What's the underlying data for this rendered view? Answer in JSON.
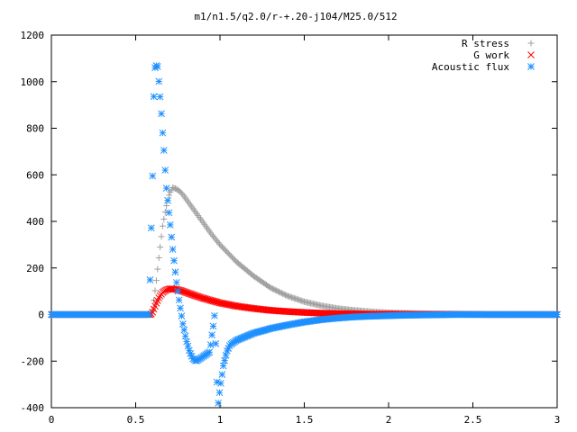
{
  "chart_data": {
    "type": "scatter",
    "title": "m1/n1.5/q2.0/r-+.20-j104/M25.0/512",
    "xlim": [
      0,
      3
    ],
    "ylim": [
      -400,
      1200
    ],
    "x_ticks": [
      0,
      0.5,
      1,
      1.5,
      2,
      2.5,
      3
    ],
    "x_tick_labels": [
      "0",
      "0.5",
      "1",
      "1.5",
      "2",
      "2.5",
      "3"
    ],
    "y_ticks": [
      -400,
      -200,
      0,
      200,
      400,
      600,
      800,
      1000,
      1200
    ],
    "y_tick_labels": [
      "-400",
      "-200",
      "0",
      "200",
      "400",
      "600",
      "800",
      "1000",
      "1200"
    ],
    "legend_position": "top-right",
    "grid": false,
    "series": [
      {
        "name": "R stress",
        "marker": "plus",
        "color": "#a0a0a0",
        "x": [
          0.0,
          0.2,
          0.4,
          0.55,
          0.59,
          0.6,
          0.62,
          0.64,
          0.66,
          0.68,
          0.7,
          0.72,
          0.74,
          0.76,
          0.78,
          0.8,
          0.85,
          0.9,
          0.95,
          1.0,
          1.1,
          1.2,
          1.3,
          1.4,
          1.5,
          1.6,
          1.7,
          1.8,
          1.9,
          2.0,
          2.1,
          2.2,
          2.4,
          2.6,
          2.8,
          3.0
        ],
        "y": [
          0,
          0,
          0,
          0,
          0,
          20,
          130,
          260,
          380,
          460,
          520,
          545,
          540,
          530,
          515,
          495,
          445,
          395,
          345,
          300,
          225,
          165,
          115,
          80,
          55,
          38,
          26,
          18,
          12,
          8,
          6,
          4,
          2,
          1,
          1,
          0
        ]
      },
      {
        "name": "G work",
        "marker": "cross",
        "color": "#ff0000",
        "x": [
          0.0,
          0.2,
          0.4,
          0.55,
          0.59,
          0.6,
          0.62,
          0.64,
          0.66,
          0.68,
          0.7,
          0.72,
          0.74,
          0.76,
          0.78,
          0.8,
          0.85,
          0.9,
          0.95,
          1.0,
          1.1,
          1.2,
          1.3,
          1.4,
          1.5,
          1.6,
          1.7,
          1.8,
          1.9,
          2.0,
          2.2,
          2.4,
          2.6,
          2.8,
          3.0
        ],
        "y": [
          0,
          0,
          0,
          0,
          0,
          10,
          45,
          75,
          95,
          105,
          110,
          110,
          108,
          105,
          100,
          95,
          82,
          70,
          60,
          50,
          36,
          26,
          18,
          13,
          9,
          6,
          4,
          3,
          2,
          2,
          1,
          1,
          0,
          0,
          0
        ]
      },
      {
        "name": "Acoustic flux",
        "marker": "star",
        "color": "#1e90ff",
        "x": [
          0.0,
          0.1,
          0.2,
          0.3,
          0.4,
          0.5,
          0.55,
          0.58,
          0.6,
          0.61,
          0.62,
          0.63,
          0.64,
          0.65,
          0.66,
          0.67,
          0.68,
          0.7,
          0.72,
          0.74,
          0.76,
          0.78,
          0.8,
          0.82,
          0.84,
          0.86,
          0.88,
          0.9,
          0.92,
          0.94,
          0.95,
          0.96,
          0.97,
          0.98,
          0.99,
          1.0,
          1.02,
          1.04,
          1.06,
          1.08,
          1.1,
          1.15,
          1.2,
          1.3,
          1.4,
          1.5,
          1.6,
          1.7,
          1.8,
          1.9,
          2.0,
          2.1,
          2.2,
          2.3,
          2.4,
          2.5,
          2.6,
          2.7,
          2.8,
          2.9,
          3.0
        ],
        "y": [
          0,
          0,
          0,
          0,
          0,
          0,
          0,
          0,
          595,
          1050,
          1070,
          1065,
          980,
          890,
          780,
          680,
          560,
          420,
          280,
          150,
          50,
          -40,
          -110,
          -160,
          -190,
          -200,
          -190,
          -180,
          -170,
          -160,
          -100,
          -50,
          10,
          -260,
          -380,
          -320,
          -220,
          -160,
          -130,
          -120,
          -110,
          -95,
          -80,
          -60,
          -45,
          -32,
          -22,
          -15,
          -10,
          -7,
          -5,
          -3,
          -2,
          -1,
          0,
          0,
          0,
          0,
          0,
          0,
          0
        ]
      }
    ]
  }
}
